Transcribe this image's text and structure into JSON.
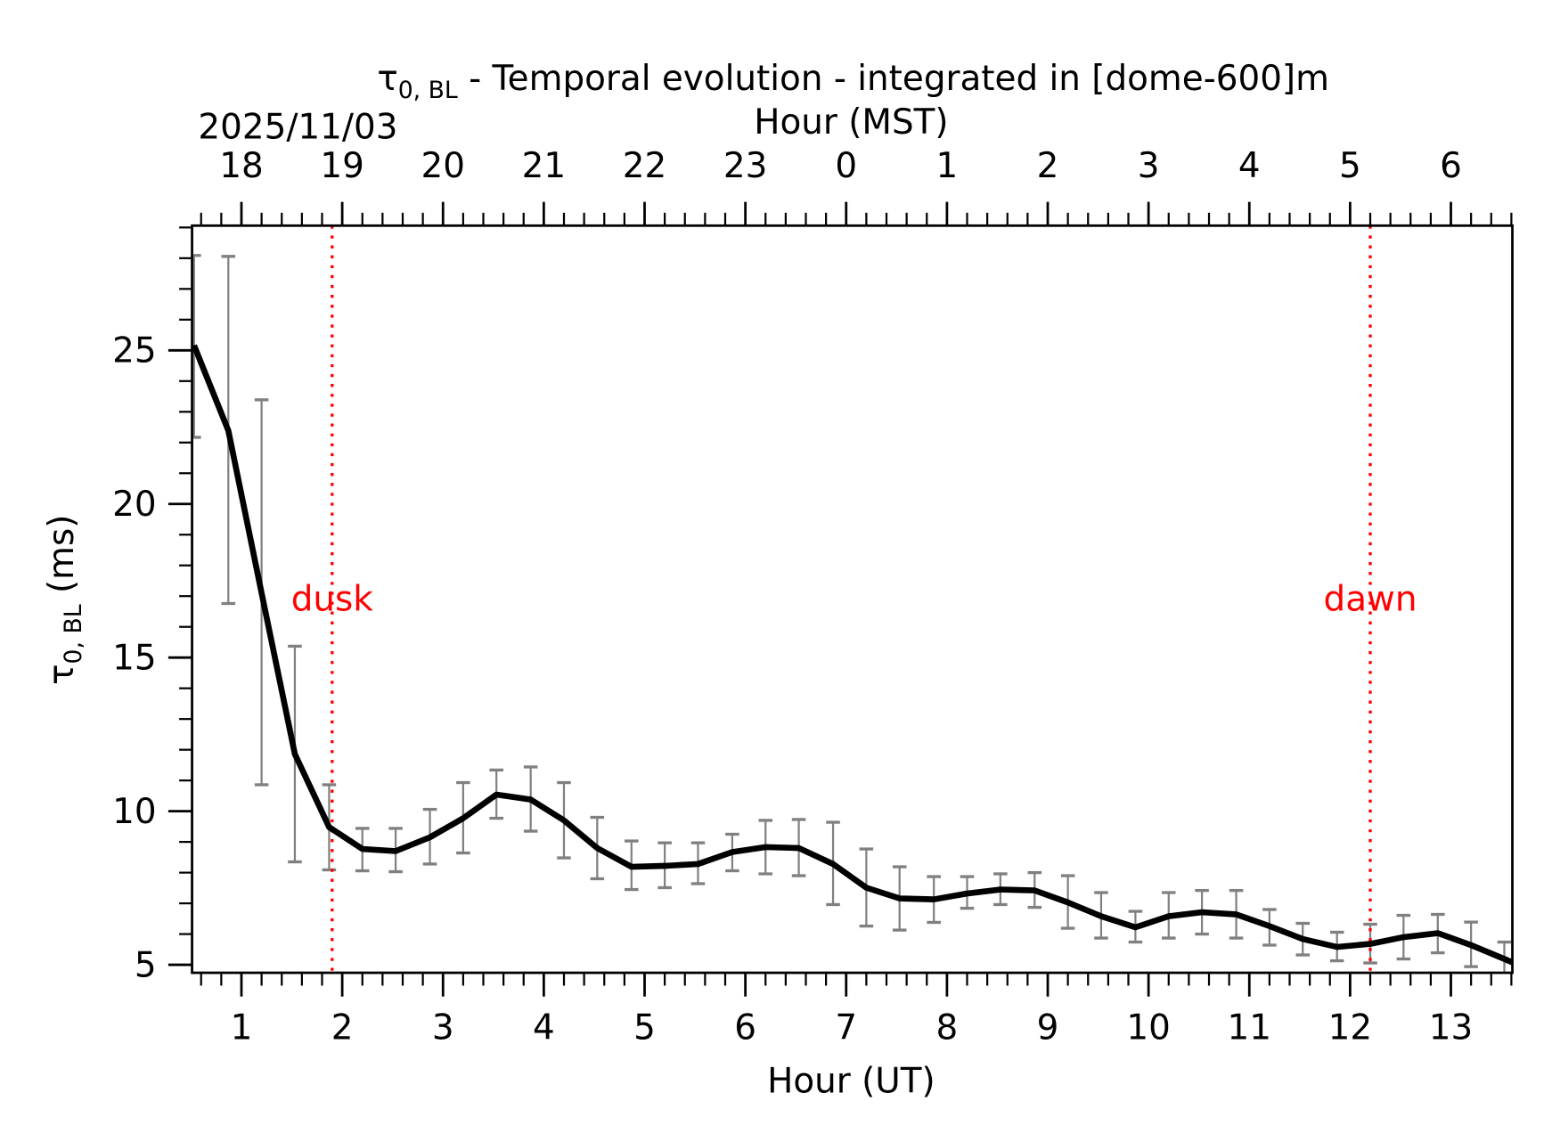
{
  "chart_data": {
    "type": "line",
    "title": {
      "symbol": "τ",
      "subscript": "0, BL",
      "rest": " - Temporal evolution - integrated in [dome-600]m"
    },
    "date_label": "2025/11/03",
    "xlabel": "Hour (UT)",
    "xlabel_top": "Hour (MST)",
    "ylabel": {
      "symbol": "τ",
      "subscript": "0, BL",
      "rest": " (ms)"
    },
    "xlim": [
      0.51,
      13.61
    ],
    "ylim": [
      4.74,
      29.06
    ],
    "x_ticks": [
      1,
      2,
      3,
      4,
      5,
      6,
      7,
      8,
      9,
      10,
      11,
      12,
      13
    ],
    "x_tick_labels": [
      "1",
      "2",
      "3",
      "4",
      "5",
      "6",
      "7",
      "8",
      "9",
      "10",
      "11",
      "12",
      "13"
    ],
    "x_top_tick_labels": [
      "18",
      "19",
      "20",
      "21",
      "22",
      "23",
      "0",
      "1",
      "2",
      "3",
      "4",
      "5",
      "6"
    ],
    "y_ticks": [
      5,
      10,
      15,
      20,
      25
    ],
    "y_tick_labels": [
      "5",
      "10",
      "15",
      "20",
      "25"
    ],
    "grid": false,
    "line_color": "#000000",
    "errorbar_color": "#808080",
    "markers": [
      {
        "label": "dusk",
        "x": 1.9,
        "color": "#ff0000"
      },
      {
        "label": "dawn",
        "x": 12.2,
        "color": "#ff0000"
      }
    ],
    "x": [
      0.53,
      0.87,
      1.2,
      1.53,
      1.87,
      2.2,
      2.53,
      2.87,
      3.2,
      3.53,
      3.87,
      4.2,
      4.53,
      4.87,
      5.2,
      5.53,
      5.87,
      6.2,
      6.53,
      6.87,
      7.2,
      7.53,
      7.87,
      8.2,
      8.53,
      8.87,
      9.2,
      9.53,
      9.87,
      10.2,
      10.53,
      10.87,
      11.2,
      11.53,
      11.87,
      12.2,
      12.53,
      12.87,
      13.2,
      13.53
    ],
    "y": [
      25.16,
      22.39,
      17.1,
      11.86,
      9.48,
      8.77,
      8.7,
      9.15,
      9.77,
      10.54,
      10.38,
      9.7,
      8.8,
      8.19,
      8.22,
      8.28,
      8.67,
      8.83,
      8.8,
      8.28,
      7.51,
      7.16,
      7.13,
      7.32,
      7.45,
      7.42,
      7.03,
      6.58,
      6.22,
      6.58,
      6.71,
      6.64,
      6.26,
      5.84,
      5.58,
      5.68,
      5.9,
      6.03,
      5.64,
      5.19
    ],
    "y_upper": [
      28.09,
      28.06,
      23.39,
      15.37,
      10.86,
      9.44,
      9.44,
      10.06,
      10.93,
      11.34,
      11.44,
      10.93,
      9.8,
      9.03,
      8.97,
      8.97,
      9.25,
      9.7,
      9.73,
      9.64,
      8.77,
      8.19,
      7.87,
      7.87,
      7.96,
      8.0,
      7.9,
      7.35,
      6.74,
      7.35,
      7.42,
      7.42,
      6.8,
      6.35,
      6.06,
      6.32,
      6.61,
      6.64,
      6.39,
      5.74
    ],
    "y_lower": [
      22.17,
      16.76,
      10.86,
      8.35,
      8.09,
      8.06,
      8.03,
      8.28,
      8.64,
      9.77,
      9.35,
      8.48,
      7.8,
      7.45,
      7.51,
      7.64,
      8.06,
      7.96,
      7.9,
      6.96,
      6.26,
      6.13,
      6.38,
      6.84,
      6.96,
      6.87,
      6.19,
      5.87,
      5.74,
      5.87,
      6.0,
      5.87,
      5.64,
      5.32,
      5.13,
      5.06,
      5.19,
      5.39,
      4.94,
      4.7
    ]
  }
}
